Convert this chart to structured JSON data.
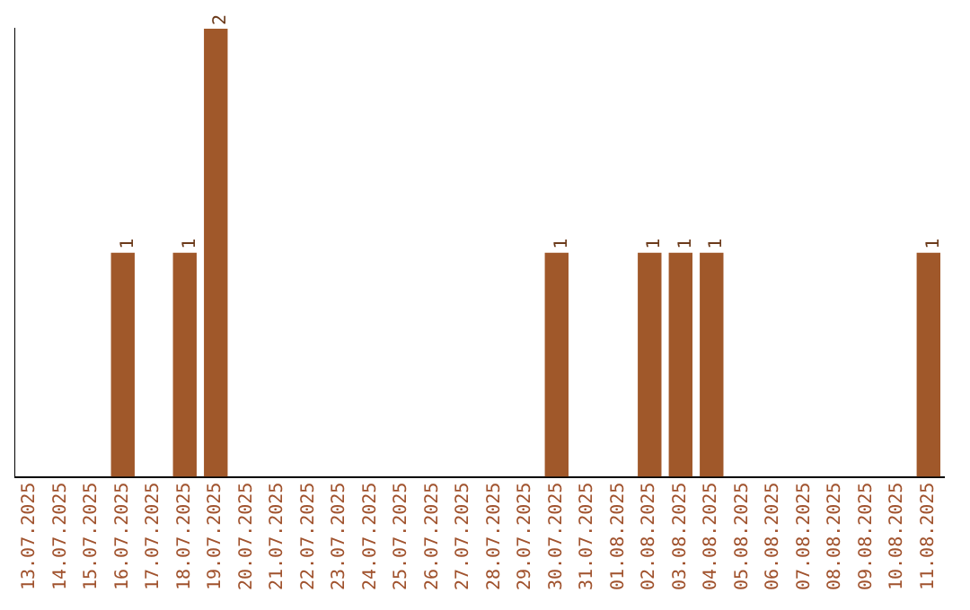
{
  "chart_data": {
    "type": "bar",
    "categories": [
      "13.07.2025",
      "14.07.2025",
      "15.07.2025",
      "16.07.2025",
      "17.07.2025",
      "18.07.2025",
      "19.07.2025",
      "20.07.2025",
      "21.07.2025",
      "22.07.2025",
      "23.07.2025",
      "24.07.2025",
      "25.07.2025",
      "26.07.2025",
      "27.07.2025",
      "28.07.2025",
      "29.07.2025",
      "30.07.2025",
      "31.07.2025",
      "01.08.2025",
      "02.08.2025",
      "03.08.2025",
      "04.08.2025",
      "05.08.2025",
      "06.08.2025",
      "07.08.2025",
      "08.08.2025",
      "09.08.2025",
      "10.08.2025",
      "11.08.2025"
    ],
    "values": [
      0,
      0,
      0,
      1,
      0,
      1,
      2,
      0,
      0,
      0,
      0,
      0,
      0,
      0,
      0,
      0,
      0,
      1,
      0,
      0,
      1,
      1,
      1,
      0,
      0,
      0,
      0,
      0,
      0,
      1
    ],
    "value_labels": [
      null,
      null,
      null,
      "1",
      null,
      "1",
      "2",
      null,
      null,
      null,
      null,
      null,
      null,
      null,
      null,
      null,
      null,
      "1",
      null,
      null,
      "1",
      "1",
      "1",
      null,
      null,
      null,
      null,
      null,
      null,
      "1"
    ],
    "color": "#a0582a",
    "ylim": [
      0,
      2
    ],
    "tick_labels": "x",
    "grid": false,
    "legend": false
  }
}
